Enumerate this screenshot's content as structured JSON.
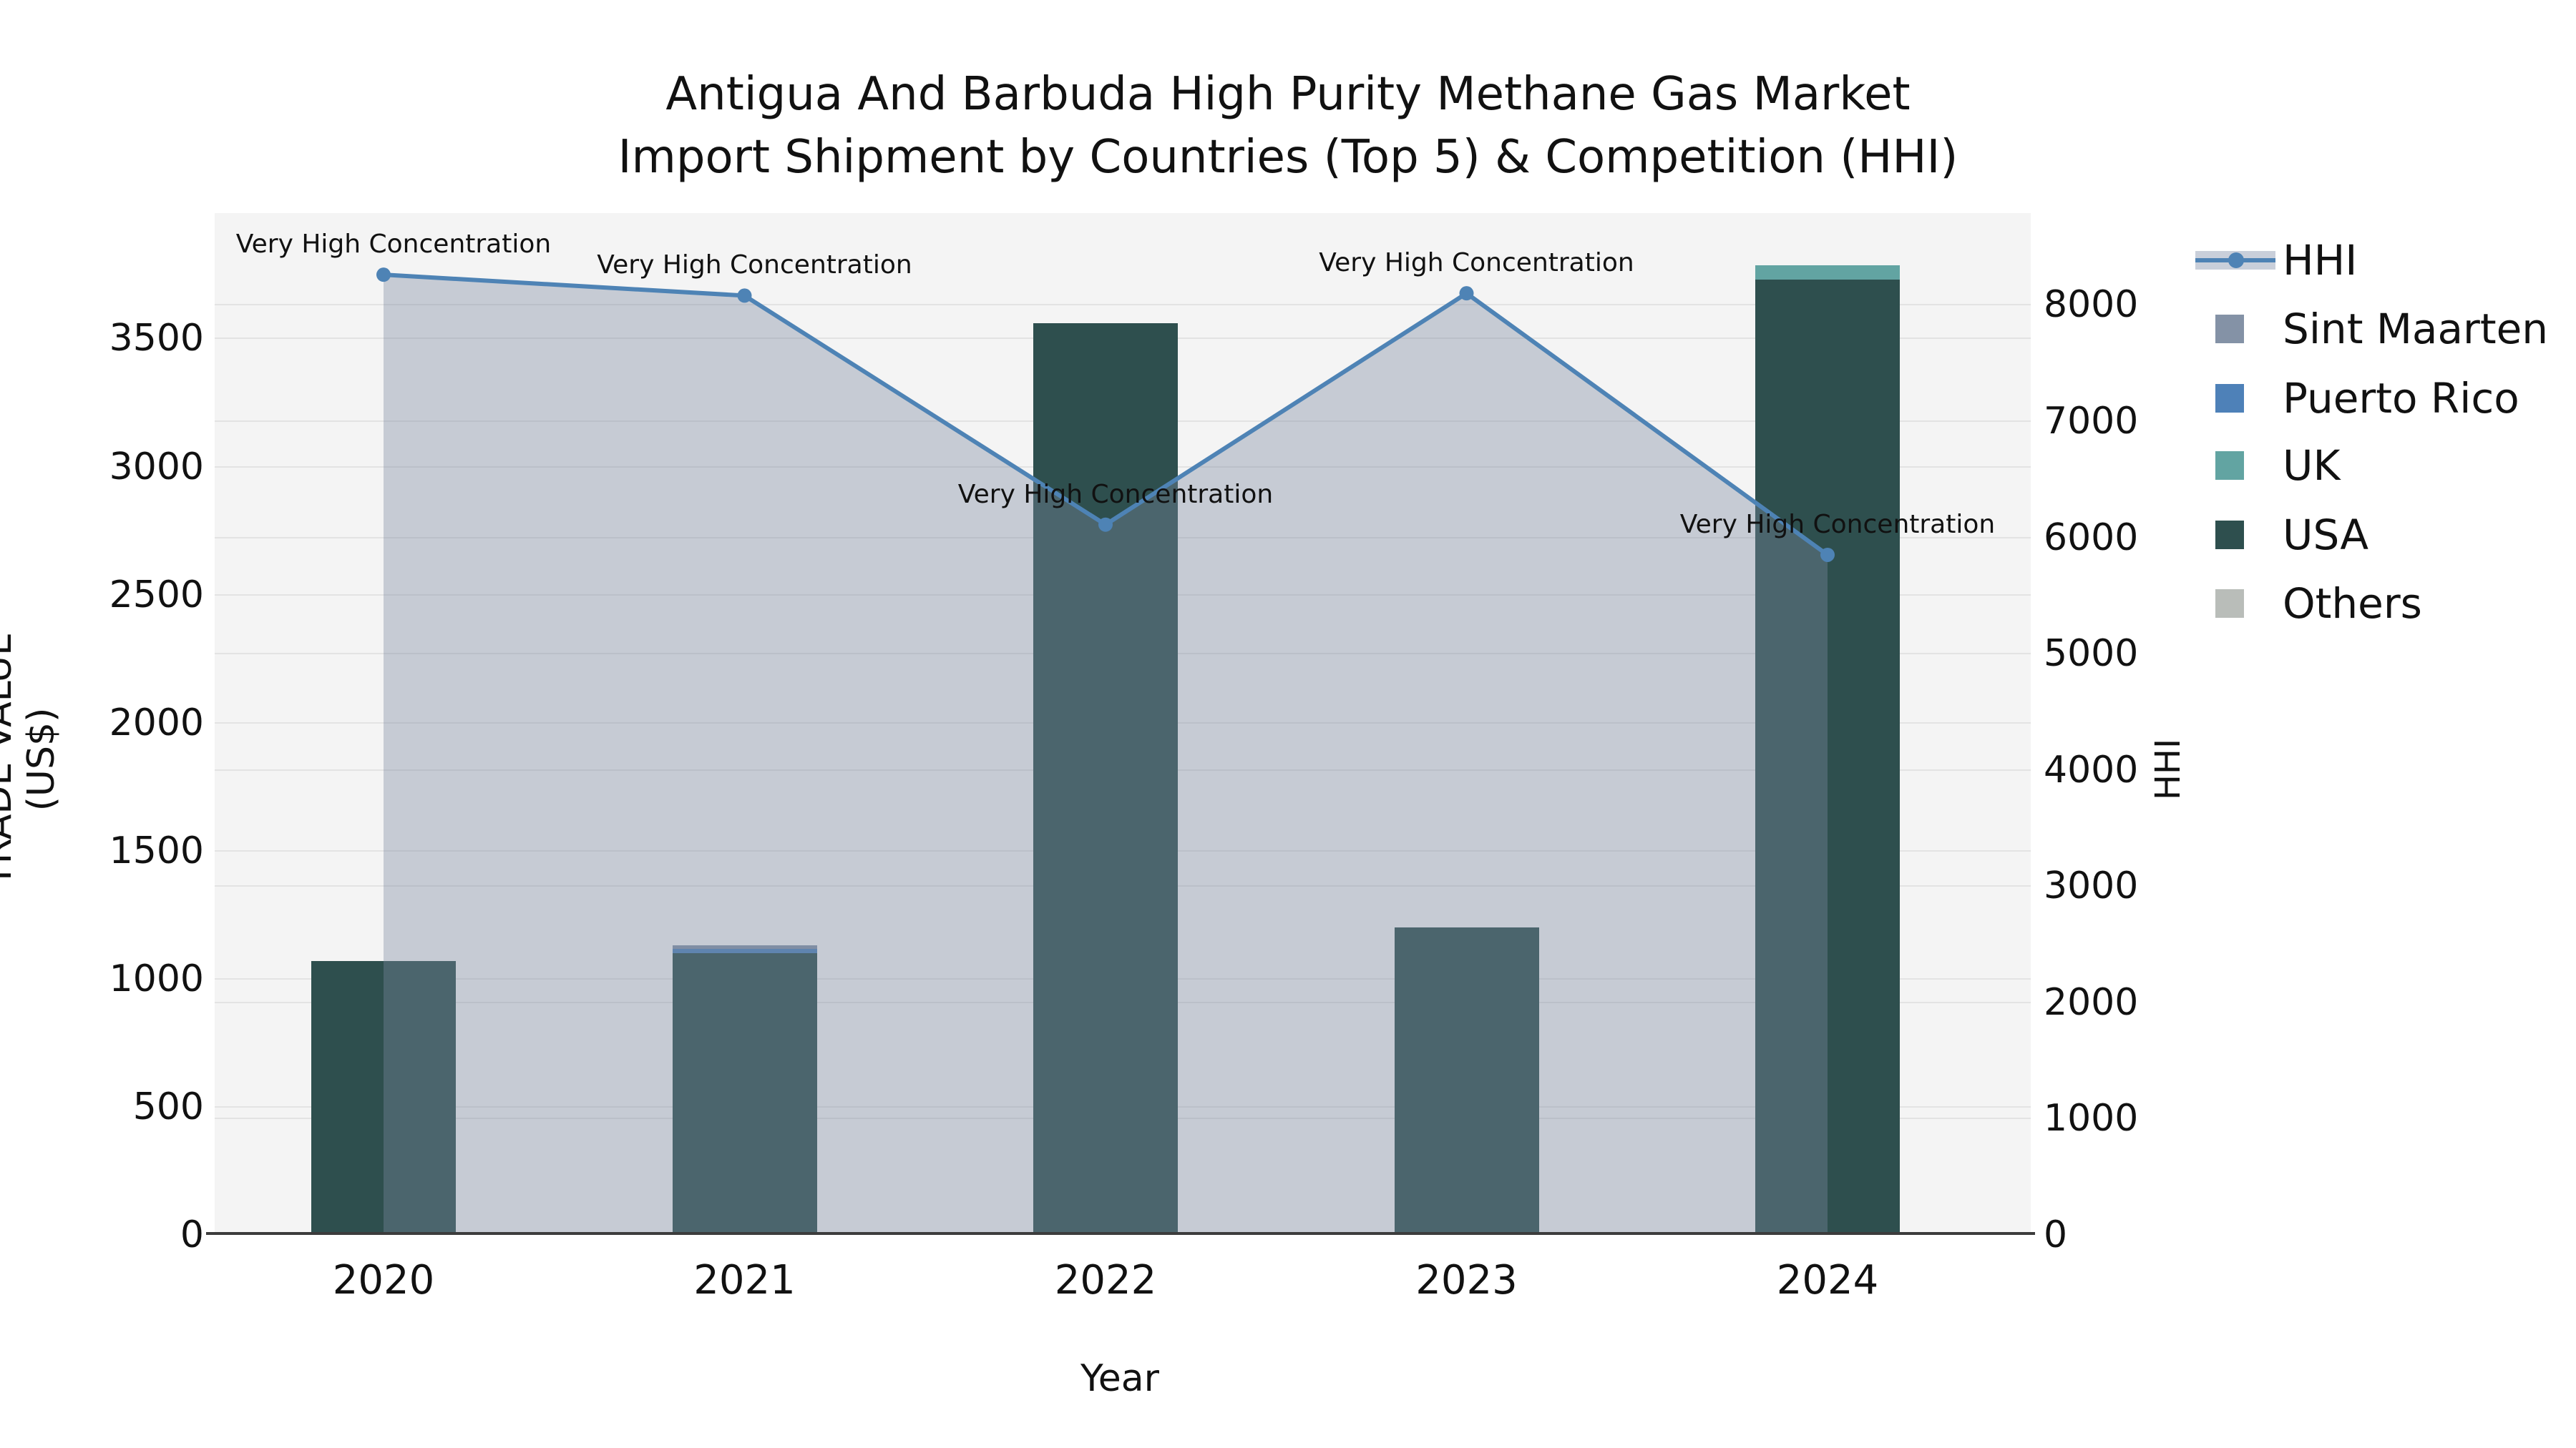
{
  "title": {
    "line1": "Antigua And Barbuda High Purity Methane Gas Market",
    "line2": "Import Shipment by Countries (Top 5) & Competition (HHI)"
  },
  "axes": {
    "x": {
      "label": "Year",
      "ticks": [
        "2020",
        "2021",
        "2022",
        "2023",
        "2024"
      ]
    },
    "y_left": {
      "label": "TRADE VALUE (US$)",
      "ticks": [
        "0",
        "500",
        "1000",
        "1500",
        "2000",
        "2500",
        "3000",
        "3500"
      ]
    },
    "y_right": {
      "label": "HHI",
      "ticks": [
        "0",
        "1000",
        "2000",
        "3000",
        "4000",
        "5000",
        "6000",
        "7000",
        "8000"
      ]
    }
  },
  "legend": {
    "items": [
      {
        "label": "HHI",
        "type": "line",
        "color": "#4e83b5",
        "fill": "#c9cfda"
      },
      {
        "label": "Sint Maarten",
        "type": "square",
        "color": "#8492a6"
      },
      {
        "label": "Puerto Rico",
        "type": "square",
        "color": "#4e81b8"
      },
      {
        "label": "UK",
        "type": "square",
        "color": "#62a4a2"
      },
      {
        "label": "USA",
        "type": "square",
        "color": "#2e4f4e"
      },
      {
        "label": "Others",
        "type": "square",
        "color": "#b9bdb9"
      }
    ]
  },
  "chart_data": {
    "type": "combo: stacked bar (left axis) + line with area fill (right axis)",
    "title": "Antigua And Barbuda High Purity Methane Gas Market Import Shipment by Countries (Top 5) & Competition (HHI)",
    "categories": [
      "2020",
      "2021",
      "2022",
      "2023",
      "2024"
    ],
    "bar_series": [
      {
        "name": "USA",
        "color": "#2e4f4e",
        "values": [
          1070,
          1100,
          3560,
          1200,
          3730
        ]
      },
      {
        "name": "Puerto Rico",
        "color": "#4e81b8",
        "values": [
          0,
          17,
          0,
          0,
          0
        ]
      },
      {
        "name": "Sint Maarten",
        "color": "#8492a6",
        "values": [
          0,
          14,
          0,
          0,
          0
        ]
      },
      {
        "name": "UK",
        "color": "#62a4a2",
        "values": [
          0,
          0,
          0,
          0,
          55
        ]
      },
      {
        "name": "Others",
        "color": "#b9bdb9",
        "values": [
          0,
          0,
          0,
          0,
          0
        ]
      }
    ],
    "line_series": {
      "name": "HHI",
      "axis": "right",
      "color": "#4e83b5",
      "area_fill": "rgba(124,136,160,0.38)",
      "values": [
        8260,
        8080,
        6110,
        8100,
        5850
      ]
    },
    "annotations": [
      "Very High Concentration",
      "Very High Concentration",
      "Very High Concentration",
      "Very High Concentration",
      "Very High Concentration"
    ],
    "xlabel": "Year",
    "ylabel_left": "TRADE VALUE (US$)",
    "ylabel_right": "HHI",
    "ylim_left": [
      0,
      3990
    ],
    "ylim_right": [
      0,
      8790
    ],
    "plot_bg": "#f4f4f4",
    "grid": true,
    "legend_position": "right"
  }
}
